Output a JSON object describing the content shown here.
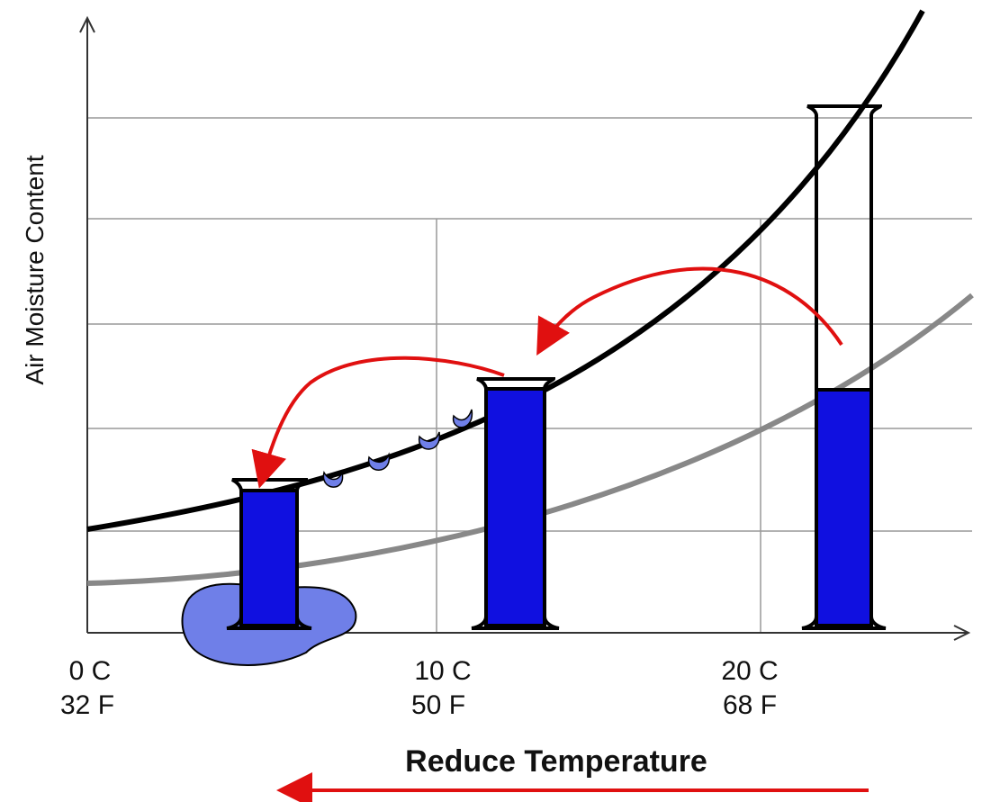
{
  "y_axis_label": "Air Moisture Content",
  "x_ticks": [
    {
      "celsius": "0 C",
      "fahrenheit": "32 F"
    },
    {
      "celsius": "10 C",
      "fahrenheit": "50 F"
    },
    {
      "celsius": "20 C",
      "fahrenheit": "68 F"
    }
  ],
  "x_axis_label": "Reduce Temperature"
}
